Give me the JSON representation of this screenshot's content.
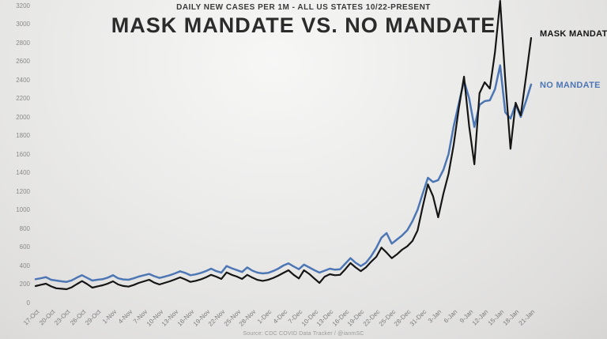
{
  "header": {
    "subtitle": "DAILY NEW CASES PER 1M - ALL US STATES 10/22-PRESENT",
    "title": "MASK MANDATE VS. NO MANDATE"
  },
  "source_note": "Source: CDC COVID Data Tracker / @ianmSC",
  "colors": {
    "mask_mandate_line": "#151515",
    "no_mandate_line": "#4d76b5",
    "axis_text": "#8a8a8a",
    "background": "#e8e8e7"
  },
  "chart_data": {
    "type": "line",
    "title": "MASK MANDATE VS. NO MANDATE",
    "subtitle": "DAILY NEW CASES PER 1M - ALL US STATES 10/22-PRESENT",
    "xlabel": "",
    "ylabel": "",
    "ylim": [
      0,
      3200
    ],
    "ytick_step": 200,
    "yticks": [
      0,
      200,
      400,
      600,
      800,
      1000,
      1200,
      1400,
      1600,
      1800,
      2000,
      2200,
      2400,
      2600,
      2800,
      3000,
      3200
    ],
    "grid": "off",
    "legend_position": "labels at right end of lines",
    "xtick_every": 3,
    "xtick_labels": [
      "17-Oct",
      "20-Oct",
      "23-Oct",
      "26-Oct",
      "29-Oct",
      "1-Nov",
      "4-Nov",
      "7-Nov",
      "10-Nov",
      "13-Nov",
      "16-Nov",
      "19-Nov",
      "22-Nov",
      "25-Nov",
      "28-Nov",
      "1-Dec",
      "4-Dec",
      "7-Dec",
      "10-Dec",
      "13-Dec",
      "16-Dec",
      "19-Dec",
      "22-Dec",
      "25-Dec",
      "28-Dec",
      "31-Dec",
      "3-Jan",
      "6-Jan",
      "9-Jan",
      "12-Jan",
      "15-Jan",
      "18-Jan",
      "21-Jan"
    ],
    "dates": [
      "17-Oct",
      "18-Oct",
      "19-Oct",
      "20-Oct",
      "21-Oct",
      "22-Oct",
      "23-Oct",
      "24-Oct",
      "25-Oct",
      "26-Oct",
      "27-Oct",
      "28-Oct",
      "29-Oct",
      "30-Oct",
      "31-Oct",
      "1-Nov",
      "2-Nov",
      "3-Nov",
      "4-Nov",
      "5-Nov",
      "6-Nov",
      "7-Nov",
      "8-Nov",
      "9-Nov",
      "10-Nov",
      "11-Nov",
      "12-Nov",
      "13-Nov",
      "14-Nov",
      "15-Nov",
      "16-Nov",
      "17-Nov",
      "18-Nov",
      "19-Nov",
      "20-Nov",
      "21-Nov",
      "22-Nov",
      "23-Nov",
      "24-Nov",
      "25-Nov",
      "26-Nov",
      "27-Nov",
      "28-Nov",
      "29-Nov",
      "30-Nov",
      "1-Dec",
      "2-Dec",
      "3-Dec",
      "4-Dec",
      "5-Dec",
      "6-Dec",
      "7-Dec",
      "8-Dec",
      "9-Dec",
      "10-Dec",
      "11-Dec",
      "12-Dec",
      "13-Dec",
      "14-Dec",
      "15-Dec",
      "16-Dec",
      "17-Dec",
      "18-Dec",
      "19-Dec",
      "20-Dec",
      "21-Dec",
      "22-Dec",
      "23-Dec",
      "24-Dec",
      "25-Dec",
      "26-Dec",
      "27-Dec",
      "28-Dec",
      "29-Dec",
      "30-Dec",
      "31-Dec",
      "1-Jan",
      "2-Jan",
      "3-Jan",
      "4-Jan",
      "5-Jan",
      "6-Jan",
      "7-Jan",
      "8-Jan",
      "9-Jan",
      "10-Jan",
      "11-Jan",
      "12-Jan",
      "13-Jan",
      "14-Jan",
      "15-Jan",
      "16-Jan",
      "17-Jan",
      "18-Jan",
      "19-Jan",
      "20-Jan",
      "21-Jan"
    ],
    "series": [
      {
        "name": "NO MANDATE",
        "color": "#4d76b5",
        "values": [
          253,
          262,
          275,
          247,
          238,
          230,
          224,
          240,
          270,
          295,
          266,
          238,
          247,
          253,
          270,
          295,
          262,
          250,
          247,
          262,
          281,
          295,
          309,
          285,
          266,
          280,
          295,
          315,
          338,
          320,
          295,
          305,
          320,
          340,
          366,
          340,
          323,
          394,
          370,
          351,
          330,
          380,
          345,
          323,
          315,
          320,
          340,
          366,
          400,
          423,
          390,
          360,
          409,
          380,
          350,
          323,
          345,
          366,
          355,
          360,
          420,
          479,
          430,
          394,
          430,
          500,
          590,
          700,
          749,
          636,
          680,
          723,
          780,
          877,
          1000,
          1174,
          1345,
          1300,
          1320,
          1430,
          1600,
          1900,
          2150,
          2390,
          2200,
          1892,
          2130,
          2170,
          2180,
          2300,
          2556,
          2050,
          1983,
          2136,
          2000,
          2170,
          2350
        ]
      },
      {
        "name": "MASK MANDATE",
        "color": "#151515",
        "values": [
          179,
          192,
          204,
          175,
          155,
          150,
          145,
          165,
          200,
          232,
          200,
          162,
          175,
          187,
          205,
          230,
          196,
          180,
          173,
          190,
          213,
          230,
          247,
          215,
          196,
          213,
          230,
          250,
          272,
          250,
          224,
          235,
          250,
          272,
          300,
          280,
          255,
          326,
          300,
          281,
          255,
          300,
          270,
          245,
          235,
          245,
          265,
          290,
          320,
          349,
          300,
          260,
          349,
          310,
          260,
          213,
          280,
          306,
          295,
          300,
          360,
          426,
          380,
          340,
          380,
          440,
          494,
          593,
          540,
          479,
          520,
          570,
          607,
          664,
          777,
          1033,
          1274,
          1146,
          919,
          1174,
          1387,
          1700,
          2100,
          2434,
          1900,
          1490,
          2255,
          2374,
          2306,
          2700,
          3250,
          2400,
          1657,
          2153,
          2017,
          2430,
          2850
        ]
      }
    ]
  }
}
